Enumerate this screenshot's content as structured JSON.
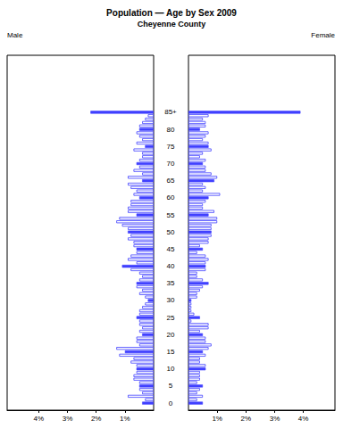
{
  "chart_data": {
    "type": "bar",
    "orientation": "horizontal",
    "title": "Population — Age by Sex 2009",
    "subtitle": "Cheyenne County",
    "categories": [
      "0",
      null,
      null,
      null,
      null,
      "5",
      null,
      null,
      null,
      null,
      "10",
      null,
      null,
      null,
      null,
      "15",
      null,
      null,
      null,
      null,
      "20",
      null,
      null,
      null,
      null,
      "25",
      null,
      null,
      null,
      null,
      "30",
      null,
      null,
      null,
      null,
      "35",
      null,
      null,
      null,
      null,
      "40",
      null,
      null,
      null,
      null,
      "45",
      null,
      null,
      null,
      null,
      "50",
      null,
      null,
      null,
      null,
      "55",
      null,
      null,
      null,
      null,
      "60",
      null,
      null,
      null,
      null,
      "65",
      null,
      null,
      null,
      null,
      "70",
      null,
      null,
      null,
      null,
      "75",
      null,
      null,
      null,
      null,
      "80",
      null,
      null,
      null,
      null,
      "85+"
    ],
    "series": [
      {
        "name": "Male",
        "color": "#4040ff",
        "values": [
          0.4,
          0.3,
          0.9,
          0.4,
          0.5,
          0.5,
          0.5,
          0.7,
          0.7,
          0.6,
          0.6,
          0.6,
          0.8,
          0.7,
          1.2,
          1.0,
          1.3,
          0.5,
          0.6,
          0.6,
          0.4,
          0.5,
          0.4,
          0.5,
          0.5,
          0.6,
          0.5,
          0.5,
          0.4,
          0.3,
          0.2,
          0.3,
          0.5,
          0.4,
          0.6,
          0.6,
          0.5,
          0.4,
          0.5,
          0.8,
          1.1,
          0.6,
          0.9,
          0.8,
          0.6,
          0.6,
          0.7,
          0.7,
          0.9,
          0.8,
          0.9,
          0.9,
          1.1,
          1.3,
          1.2,
          0.6,
          0.9,
          0.9,
          0.8,
          0.8,
          0.5,
          0.7,
          0.6,
          0.8,
          0.9,
          0.4,
          0.9,
          0.4,
          0.7,
          0.5,
          0.6,
          0.5,
          0.4,
          0.4,
          0.7,
          0.3,
          0.6,
          0.4,
          0.5,
          0.6,
          0.5,
          0.5,
          0.4,
          0.3,
          0.2,
          2.2
        ]
      },
      {
        "name": "Female",
        "color": "#4040ff",
        "values": [
          0.5,
          0.3,
          0.5,
          0.3,
          0.4,
          0.5,
          0.3,
          0.4,
          0.4,
          0.4,
          0.6,
          0.6,
          0.4,
          0.4,
          0.6,
          0.5,
          0.7,
          0.8,
          0.6,
          0.6,
          0.5,
          0.4,
          0.7,
          0.7,
          0.1,
          0.4,
          0.2,
          0.1,
          0.1,
          0.1,
          0.1,
          0.3,
          0.3,
          0.4,
          0.5,
          0.7,
          0.5,
          0.3,
          0.3,
          0.6,
          0.6,
          0.6,
          0.7,
          0.6,
          0.3,
          0.5,
          0.4,
          0.7,
          0.7,
          0.8,
          0.8,
          0.8,
          0.8,
          1.0,
          1.0,
          0.7,
          0.9,
          0.5,
          0.5,
          0.6,
          0.7,
          1.1,
          0.5,
          0.6,
          0.5,
          0.9,
          1.0,
          0.8,
          0.6,
          0.6,
          0.5,
          0.6,
          0.4,
          0.5,
          0.8,
          0.7,
          0.7,
          0.5,
          0.6,
          0.7,
          0.4,
          0.6,
          0.6,
          0.5,
          0.7,
          3.9
        ]
      }
    ],
    "xlim": [
      0,
      5.1
    ],
    "xticks": [
      {
        "value": 1,
        "label": "1%"
      },
      {
        "value": 2,
        "label": "2%"
      },
      {
        "value": 3,
        "label": "3%"
      },
      {
        "value": 4,
        "label": "4%"
      }
    ]
  }
}
